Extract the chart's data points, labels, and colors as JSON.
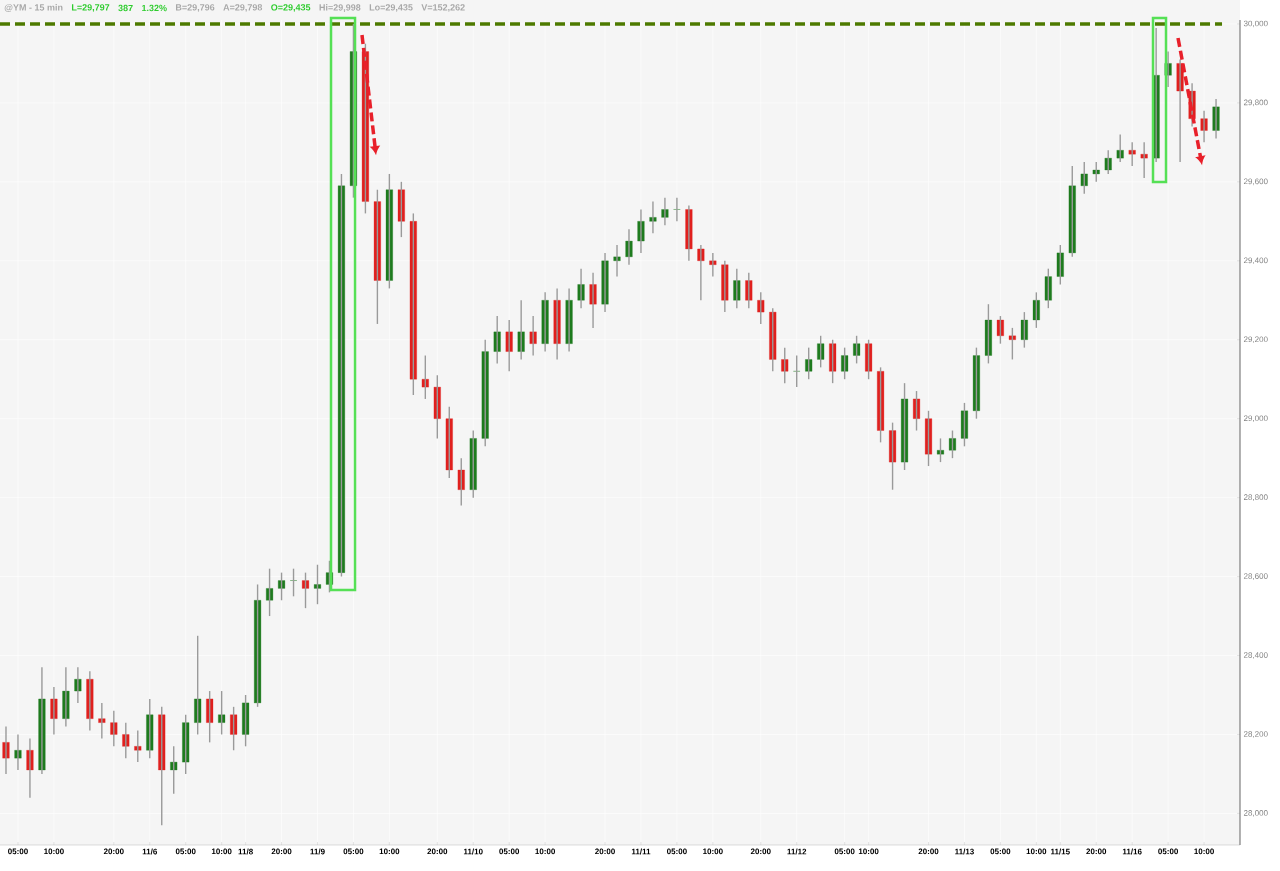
{
  "chart_data": {
    "type": "candlestick",
    "title": "@YM - 15 min",
    "annotations": [
      "L=29,797",
      "387",
      "1.32%",
      "B=29,796",
      "A=29,798",
      "O=29,435",
      "Hi=29,998",
      "Lo=29,435",
      "V=152,262"
    ],
    "categories": [
      null,
      "05:00",
      null,
      null,
      "10:00",
      null,
      null,
      null,
      null,
      "20:00",
      null,
      null,
      "11/6",
      null,
      null,
      "05:00",
      null,
      null,
      "10:00",
      null,
      "11/8",
      null,
      null,
      "20:00",
      null,
      null,
      "11/9",
      null,
      null,
      "05:00",
      null,
      null,
      "10:00",
      null,
      null,
      null,
      "20:00",
      null,
      null,
      "11/10",
      null,
      null,
      "05:00",
      null,
      null,
      "10:00",
      null,
      null,
      null,
      null,
      "20:00",
      null,
      null,
      "11/11",
      null,
      null,
      "05:00",
      null,
      null,
      "10:00",
      null,
      null,
      null,
      "20:00",
      null,
      null,
      "11/12",
      null,
      null,
      null,
      "05:00",
      null,
      "10:00",
      null,
      null,
      null,
      null,
      "20:00",
      null,
      null,
      "11/13",
      null,
      null,
      "05:00",
      null,
      null,
      "10:00",
      null,
      "11/15",
      null,
      null,
      "20:00",
      null,
      null,
      "11/16",
      null,
      null,
      "05:00",
      null,
      null,
      "10:00",
      null
    ],
    "ohlc": [
      [
        28180,
        28220,
        28100,
        28140
      ],
      [
        28140,
        28200,
        28110,
        28160
      ],
      [
        28160,
        28190,
        28040,
        28110
      ],
      [
        28110,
        28370,
        28100,
        28290
      ],
      [
        28290,
        28320,
        28200,
        28240
      ],
      [
        28240,
        28370,
        28220,
        28310
      ],
      [
        28310,
        28370,
        28280,
        28340
      ],
      [
        28340,
        28360,
        28210,
        28240
      ],
      [
        28240,
        28280,
        28190,
        28230
      ],
      [
        28230,
        28260,
        28170,
        28200
      ],
      [
        28200,
        28230,
        28140,
        28170
      ],
      [
        28170,
        28210,
        28130,
        28160
      ],
      [
        28160,
        28290,
        28140,
        28250
      ],
      [
        28250,
        28270,
        27970,
        28110
      ],
      [
        28110,
        28170,
        28050,
        28130
      ],
      [
        28130,
        28250,
        28100,
        28230
      ],
      [
        28230,
        28450,
        28200,
        28290
      ],
      [
        28290,
        28310,
        28180,
        28230
      ],
      [
        28230,
        28310,
        28200,
        28250
      ],
      [
        28250,
        28270,
        28160,
        28200
      ],
      [
        28200,
        28300,
        28170,
        28280
      ],
      [
        28280,
        28580,
        28270,
        28540
      ],
      [
        28540,
        28620,
        28500,
        28570
      ],
      [
        28570,
        28610,
        28540,
        28590
      ],
      [
        28590,
        28620,
        28550,
        28590
      ],
      [
        28590,
        28610,
        28520,
        28570
      ],
      [
        28570,
        28630,
        28530,
        28580
      ],
      [
        28580,
        28640,
        28560,
        28610
      ],
      [
        28610,
        29620,
        28600,
        29590
      ],
      [
        29590,
        30000,
        29560,
        29930
      ],
      [
        29930,
        29950,
        29520,
        29550
      ],
      [
        29550,
        29580,
        29240,
        29350
      ],
      [
        29350,
        29620,
        29330,
        29580
      ],
      [
        29580,
        29600,
        29460,
        29500
      ],
      [
        29500,
        29520,
        29060,
        29100
      ],
      [
        29100,
        29160,
        29050,
        29080
      ],
      [
        29080,
        29110,
        28950,
        29000
      ],
      [
        29000,
        29030,
        28850,
        28870
      ],
      [
        28870,
        28900,
        28780,
        28820
      ],
      [
        28820,
        28970,
        28800,
        28950
      ],
      [
        28950,
        29200,
        28930,
        29170
      ],
      [
        29170,
        29260,
        29140,
        29220
      ],
      [
        29220,
        29250,
        29120,
        29170
      ],
      [
        29170,
        29300,
        29150,
        29220
      ],
      [
        29220,
        29260,
        29160,
        29190
      ],
      [
        29190,
        29320,
        29170,
        29300
      ],
      [
        29300,
        29330,
        29150,
        29190
      ],
      [
        29190,
        29330,
        29170,
        29300
      ],
      [
        29300,
        29380,
        29280,
        29340
      ],
      [
        29340,
        29370,
        29230,
        29290
      ],
      [
        29290,
        29420,
        29270,
        29400
      ],
      [
        29400,
        29440,
        29360,
        29410
      ],
      [
        29410,
        29480,
        29390,
        29450
      ],
      [
        29450,
        29530,
        29420,
        29500
      ],
      [
        29500,
        29550,
        29470,
        29510
      ],
      [
        29510,
        29560,
        29490,
        29530
      ],
      [
        29530,
        29560,
        29500,
        29530
      ],
      [
        29530,
        29540,
        29400,
        29430
      ],
      [
        29430,
        29440,
        29300,
        29400
      ],
      [
        29400,
        29420,
        29360,
        29390
      ],
      [
        29390,
        29400,
        29270,
        29300
      ],
      [
        29300,
        29380,
        29280,
        29350
      ],
      [
        29350,
        29370,
        29280,
        29300
      ],
      [
        29300,
        29320,
        29240,
        29270
      ],
      [
        29270,
        29280,
        29120,
        29150
      ],
      [
        29150,
        29180,
        29090,
        29120
      ],
      [
        29120,
        29160,
        29080,
        29120
      ],
      [
        29120,
        29180,
        29100,
        29150
      ],
      [
        29150,
        29210,
        29130,
        29190
      ],
      [
        29190,
        29200,
        29090,
        29120
      ],
      [
        29120,
        29180,
        29100,
        29160
      ],
      [
        29160,
        29210,
        29140,
        29190
      ],
      [
        29190,
        29200,
        29100,
        29120
      ],
      [
        29120,
        29130,
        28940,
        28970
      ],
      [
        28970,
        28990,
        28820,
        28890
      ],
      [
        28890,
        29090,
        28870,
        29050
      ],
      [
        29050,
        29070,
        28970,
        29000
      ],
      [
        29000,
        29020,
        28880,
        28910
      ],
      [
        28910,
        28950,
        28890,
        28920
      ],
      [
        28920,
        28970,
        28900,
        28950
      ],
      [
        28950,
        29040,
        28930,
        29020
      ],
      [
        29020,
        29180,
        29000,
        29160
      ],
      [
        29160,
        29290,
        29140,
        29250
      ],
      [
        29250,
        29260,
        29190,
        29210
      ],
      [
        29210,
        29230,
        29150,
        29200
      ],
      [
        29200,
        29270,
        29180,
        29250
      ],
      [
        29250,
        29320,
        29230,
        29300
      ],
      [
        29300,
        29380,
        29280,
        29360
      ],
      [
        29360,
        29440,
        29340,
        29420
      ],
      [
        29420,
        29640,
        29410,
        29590
      ],
      [
        29590,
        29650,
        29570,
        29620
      ],
      [
        29620,
        29650,
        29600,
        29630
      ],
      [
        29630,
        29680,
        29620,
        29660
      ],
      [
        29660,
        29720,
        29650,
        29680
      ],
      [
        29680,
        29700,
        29640,
        29670
      ],
      [
        29670,
        29700,
        29610,
        29660
      ],
      [
        29660,
        29990,
        29650,
        29870
      ],
      [
        29870,
        29930,
        29840,
        29900
      ],
      [
        29900,
        29910,
        29650,
        29830
      ],
      [
        29830,
        29850,
        29740,
        29760
      ],
      [
        29760,
        29780,
        29700,
        29730
      ],
      [
        29730,
        29810,
        29710,
        29790
      ]
    ],
    "ylim": [
      27920,
      30010
    ],
    "yticks": [
      {
        "value": 28000,
        "label": "28,000"
      },
      {
        "value": 28200,
        "label": "28,200"
      },
      {
        "value": 28400,
        "label": "28,400"
      },
      {
        "value": 28600,
        "label": "28,600"
      },
      {
        "value": 28800,
        "label": "28,800"
      },
      {
        "value": 29000,
        "label": "29,000"
      },
      {
        "value": 29200,
        "label": "29,200"
      },
      {
        "value": 29400,
        "label": "29,400"
      },
      {
        "value": 29600,
        "label": "29,600"
      },
      {
        "value": 29800,
        "label": "29,800"
      },
      {
        "value": 30000,
        "label": "30,000"
      }
    ],
    "grid": true,
    "ref_lines": [
      {
        "axis": "y",
        "value": 30000,
        "color": "#4d7a00",
        "line_style": "dashed"
      }
    ]
  }
}
